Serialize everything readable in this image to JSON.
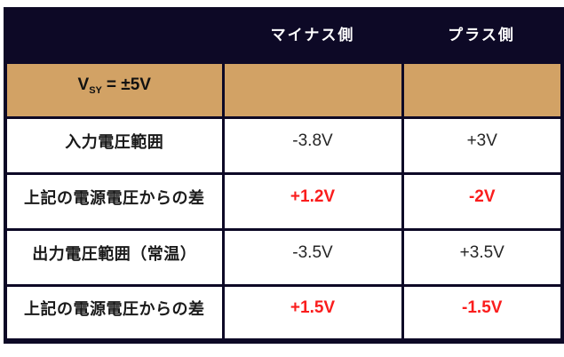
{
  "colors": {
    "header_background": "#0d0926",
    "subheader_background": "#d2a265",
    "emphasis_text": "#fa1d1d",
    "header_text": "#ffffff",
    "body_text": "#1a1a1a"
  },
  "table": {
    "columns": [
      "",
      "マイナス側",
      "プラス側"
    ],
    "vsy": {
      "base": "V",
      "subscript": "SY",
      "rest": "= ±5V"
    },
    "rows": [
      {
        "label": "入力電圧範囲",
        "minus": "-3.8V",
        "plus": "+3V",
        "emphasis": false
      },
      {
        "label": "上記の電源電圧からの差",
        "minus": "+1.2V",
        "plus": "-2V",
        "emphasis": true
      },
      {
        "label": "出力電圧範囲（常温）",
        "minus": "-3.5V",
        "plus": "+3.5V",
        "emphasis": false
      },
      {
        "label": "上記の電源電圧からの差",
        "minus": "+1.5V",
        "plus": "-1.5V",
        "emphasis": true
      }
    ]
  }
}
